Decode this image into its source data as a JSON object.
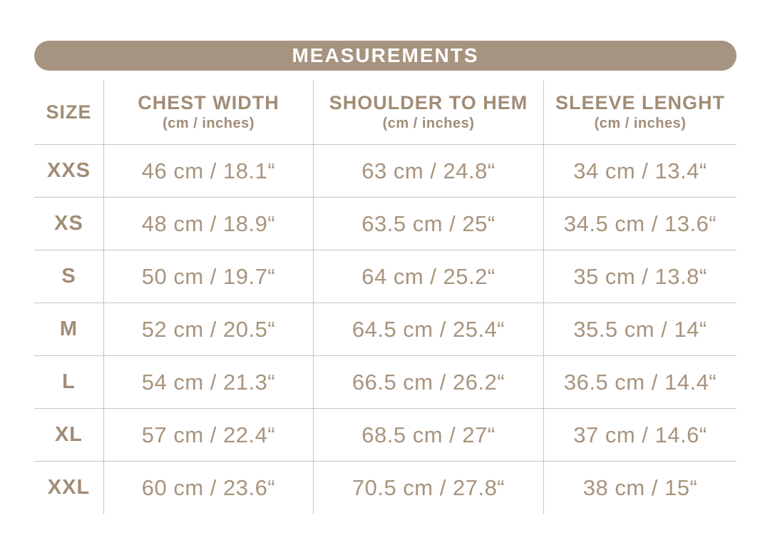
{
  "title": "MEASUREMENTS",
  "colors": {
    "accent": "#a79480",
    "header_text": "#a18c76",
    "value_text": "#a8947e",
    "grid_line": "#cfc3b5",
    "title_text": "#ffffff",
    "background": "#ffffff"
  },
  "table": {
    "columns": [
      {
        "label": "SIZE",
        "sublabel": ""
      },
      {
        "label": "CHEST WIDTH",
        "sublabel": "(cm / inches)"
      },
      {
        "label": "SHOULDER TO HEM",
        "sublabel": "(cm / inches)"
      },
      {
        "label": "SLEEVE LENGHT",
        "sublabel": "(cm / inches)"
      }
    ],
    "rows": [
      {
        "size": "XXS",
        "chest": "46 cm / 18.1“",
        "shoulder": "63 cm / 24.8“",
        "sleeve": "34 cm / 13.4“"
      },
      {
        "size": "XS",
        "chest": "48 cm / 18.9“",
        "shoulder": "63.5 cm / 25“",
        "sleeve": "34.5 cm / 13.6“"
      },
      {
        "size": "S",
        "chest": "50 cm / 19.7“",
        "shoulder": "64 cm / 25.2“",
        "sleeve": "35 cm / 13.8“"
      },
      {
        "size": "M",
        "chest": "52 cm / 20.5“",
        "shoulder": "64.5 cm / 25.4“",
        "sleeve": "35.5 cm / 14“"
      },
      {
        "size": "L",
        "chest": "54 cm / 21.3“",
        "shoulder": "66.5 cm / 26.2“",
        "sleeve": "36.5 cm / 14.4“"
      },
      {
        "size": "XL",
        "chest": "57 cm / 22.4“",
        "shoulder": "68.5 cm / 27“",
        "sleeve": "37 cm / 14.6“"
      },
      {
        "size": "XXL",
        "chest": "60 cm / 23.6“",
        "shoulder": "70.5 cm / 27.8“",
        "sleeve": "38 cm / 15“"
      }
    ]
  },
  "chart_data": {
    "type": "table",
    "title": "MEASUREMENTS",
    "columns": [
      "SIZE",
      "CHEST WIDTH (cm / inches)",
      "SHOULDER TO HEM (cm / inches)",
      "SLEEVE LENGHT (cm / inches)"
    ],
    "rows": [
      [
        "XXS",
        "46 cm / 18.1“",
        "63 cm / 24.8“",
        "34 cm / 13.4“"
      ],
      [
        "XS",
        "48 cm / 18.9“",
        "63.5 cm / 25“",
        "34.5 cm / 13.6“"
      ],
      [
        "S",
        "50 cm / 19.7“",
        "64 cm / 25.2“",
        "35 cm / 13.8“"
      ],
      [
        "M",
        "52 cm / 20.5“",
        "64.5 cm / 25.4“",
        "35.5 cm / 14“"
      ],
      [
        "L",
        "54 cm / 21.3“",
        "66.5 cm / 26.2“",
        "36.5 cm / 14.4“"
      ],
      [
        "XL",
        "57 cm / 22.4“",
        "68.5 cm / 27“",
        "37 cm / 14.6“"
      ],
      [
        "XXL",
        "60 cm / 23.6“",
        "70.5 cm / 27.8“",
        "38 cm / 15“"
      ]
    ]
  }
}
